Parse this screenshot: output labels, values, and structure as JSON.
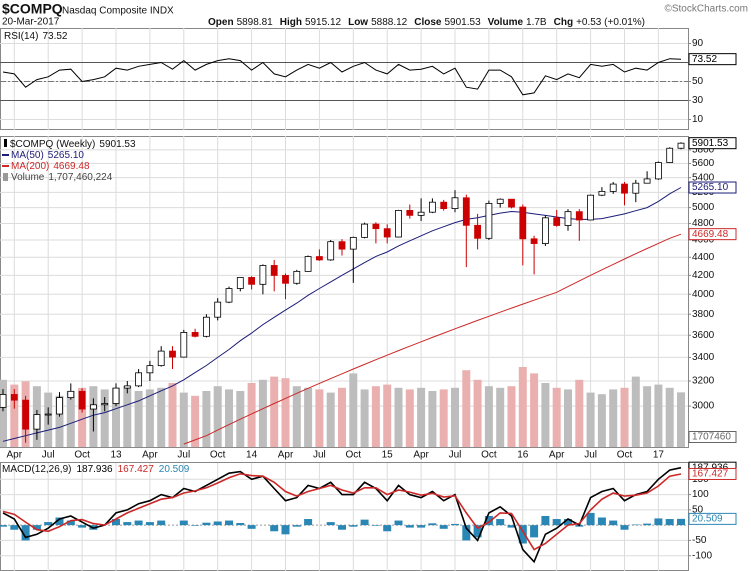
{
  "header": {
    "symbol": "$COMPQ",
    "name": "Nasdaq Composite INDX",
    "date": "20-Mar-2017",
    "quote": [
      {
        "label": "Open",
        "value": 5898.81
      },
      {
        "label": "High",
        "value": 5915.12
      },
      {
        "label": "Low",
        "value": 5888.12
      },
      {
        "label": "Close",
        "value": 5901.53
      },
      {
        "label": "Volume",
        "value": "1.7B"
      },
      {
        "label": "Chg",
        "value": "+0.53 (+0.01%)"
      }
    ],
    "copyright": "©StockCharts.com"
  },
  "chart_data": [
    {
      "type": "line",
      "title": "RSI(14)",
      "color": "#000000",
      "ylim": [
        0,
        100
      ],
      "yticks": [
        10,
        30,
        50,
        70,
        90
      ],
      "overbought": 70,
      "oversold": 30,
      "midline": 50,
      "grid": true,
      "values": [
        60,
        58,
        44,
        52,
        55,
        62,
        63,
        50,
        52,
        55,
        64,
        62,
        66,
        68,
        70,
        63,
        72,
        62,
        68,
        72,
        74,
        72,
        62,
        70,
        58,
        55,
        62,
        68,
        64,
        70,
        60,
        66,
        70,
        62,
        58,
        68,
        62,
        63,
        66,
        58,
        64,
        44,
        42,
        62,
        62,
        55,
        36,
        38,
        56,
        52,
        58,
        54,
        68,
        66,
        68,
        60,
        64,
        62,
        70,
        74,
        73.52
      ]
    },
    {
      "type": "candlestick",
      "title": "$COMPQ (Weekly)",
      "log_scale": true,
      "grid": true,
      "ylim": [
        2700,
        5950
      ],
      "yticks": [
        3000,
        3200,
        3400,
        3600,
        3800,
        4000,
        4200,
        4400,
        4600,
        4800,
        5000,
        5200,
        5400,
        5600,
        5800
      ],
      "up_color": "#000000",
      "down_color": "#cc0000",
      "categories": [
        null,
        "Apr",
        null,
        null,
        "Jul",
        null,
        null,
        "Oct",
        null,
        null,
        "13",
        null,
        null,
        "Apr",
        null,
        null,
        "Jul",
        null,
        null,
        "Oct",
        null,
        null,
        "14",
        null,
        null,
        "Apr",
        null,
        null,
        "Jul",
        null,
        null,
        "Oct",
        null,
        null,
        "15",
        null,
        null,
        "Apr",
        null,
        null,
        "Jul",
        null,
        null,
        "Oct",
        null,
        null,
        "16",
        null,
        null,
        "Apr",
        null,
        null,
        "Jul",
        null,
        null,
        "Oct",
        null,
        null,
        "17",
        null,
        null
      ],
      "open": [
        2990,
        3091,
        3046,
        2827,
        2935,
        2939,
        3066,
        3116,
        2977,
        3010,
        3020,
        3142,
        3160,
        3268,
        3329,
        3456,
        3403,
        3626,
        3590,
        3771,
        3920,
        4060,
        4177,
        4104,
        4308,
        4199,
        4115,
        4243,
        4408,
        4370,
        4580,
        4493,
        4631,
        4792,
        4736,
        4635,
        4964,
        4901,
        4941,
        5070,
        4987,
        5128,
        4777,
        4620,
        5054,
        5109,
        5007,
        4614,
        4558,
        4870,
        4775,
        4948,
        4843,
        5162,
        5213,
        5312,
        5189,
        5324,
        5383,
        5615,
        5825
      ],
      "high": [
        3134,
        3134,
        3080,
        2970,
        2990,
        3110,
        3180,
        3140,
        3060,
        3070,
        3180,
        3200,
        3300,
        3370,
        3500,
        3500,
        3650,
        3660,
        3800,
        3960,
        4080,
        4180,
        4190,
        4320,
        4370,
        4220,
        4260,
        4420,
        4490,
        4600,
        4610,
        4640,
        4810,
        4815,
        4790,
        4970,
        5040,
        5120,
        5120,
        5100,
        5230,
        5170,
        4920,
        5090,
        5120,
        5110,
        5040,
        4650,
        4900,
        4970,
        4980,
        4980,
        5170,
        5270,
        5340,
        5340,
        5370,
        5490,
        5630,
        5840,
        5915.12
      ],
      "low": [
        2960,
        2980,
        2730,
        2750,
        2860,
        2920,
        3050,
        2950,
        2810,
        2960,
        3000,
        3100,
        3150,
        3200,
        3320,
        3300,
        3400,
        3580,
        3580,
        3740,
        3910,
        4030,
        4050,
        4000,
        4030,
        3950,
        4100,
        4240,
        4360,
        4360,
        4420,
        4120,
        4620,
        4560,
        4560,
        4630,
        4860,
        4830,
        4930,
        4960,
        4940,
        4290,
        4490,
        4600,
        5000,
        4990,
        4310,
        4210,
        4530,
        4760,
        4710,
        4590,
        4840,
        5150,
        5180,
        5030,
        5070,
        5320,
        5370,
        5610,
        5810
      ],
      "close": [
        3091,
        3046,
        2827,
        2935,
        2939,
        3066,
        3116,
        2977,
        3010,
        3020,
        3142,
        3160,
        3268,
        3329,
        3456,
        3403,
        3626,
        3590,
        3771,
        3920,
        4060,
        4177,
        4104,
        4308,
        4199,
        4115,
        4243,
        4408,
        4370,
        4580,
        4493,
        4631,
        4792,
        4736,
        4635,
        4964,
        4901,
        4941,
        5070,
        4987,
        5128,
        4777,
        4620,
        5054,
        5109,
        5007,
        4614,
        4558,
        4870,
        4775,
        4948,
        4843,
        5162,
        5213,
        5312,
        5189,
        5324,
        5383,
        5615,
        5825,
        5901.53
      ],
      "overlays": [
        {
          "name": "MA(50)",
          "color": "#1c1c7a",
          "last_label": "5265.10",
          "values": [
            2740,
            2760,
            2780,
            2800,
            2820,
            2840,
            2870,
            2900,
            2930,
            2950,
            2980,
            3010,
            3040,
            3080,
            3120,
            3160,
            3210,
            3270,
            3330,
            3400,
            3470,
            3550,
            3620,
            3700,
            3770,
            3840,
            3910,
            3990,
            4060,
            4130,
            4200,
            4270,
            4340,
            4410,
            4460,
            4530,
            4590,
            4650,
            4710,
            4760,
            4810,
            4850,
            4870,
            4900,
            4930,
            4950,
            4940,
            4920,
            4900,
            4880,
            4860,
            4850,
            4850,
            4860,
            4890,
            4920,
            4960,
            5000,
            5080,
            5180,
            5265.1
          ]
        },
        {
          "name": "MA(200)",
          "color": "#cc2828",
          "values": [
            null,
            null,
            null,
            null,
            null,
            null,
            null,
            null,
            null,
            null,
            null,
            null,
            null,
            null,
            null,
            null,
            2720,
            2750,
            2780,
            2820,
            2860,
            2900,
            2940,
            2980,
            3020,
            3060,
            3100,
            3140,
            3180,
            3220,
            3260,
            3300,
            3340,
            3380,
            3420,
            3460,
            3500,
            3540,
            3580,
            3620,
            3660,
            3700,
            3740,
            3780,
            3820,
            3860,
            3900,
            3940,
            3980,
            4020,
            4080,
            4140,
            4200,
            4260,
            4320,
            4380,
            4440,
            4500,
            4560,
            4620,
            4669.48
          ]
        }
      ],
      "volume": {
        "name": "Volume",
        "last_label": "1,707,460,224",
        "badge": "1707460",
        "up_color": "#bdbdbd",
        "down_color": "#eab0b0",
        "values": [
          2100000000,
          1950000000,
          2050000000,
          1900000000,
          1700000000,
          1600000000,
          1750000000,
          1850000000,
          1900000000,
          1800000000,
          1850000000,
          1900000000,
          1750000000,
          1800000000,
          1850000000,
          2000000000,
          1700000000,
          1600000000,
          1750000000,
          1900000000,
          1800000000,
          1750000000,
          2000000000,
          2100000000,
          2200000000,
          2150000000,
          1900000000,
          1850000000,
          1800000000,
          1700000000,
          1850000000,
          2300000000,
          1800000000,
          1900000000,
          1950000000,
          1850000000,
          1800000000,
          1850000000,
          1750000000,
          1800000000,
          1850000000,
          2400000000,
          2100000000,
          1900000000,
          1850000000,
          1900000000,
          2500000000,
          2300000000,
          2000000000,
          1850000000,
          1800000000,
          2100000000,
          1700000000,
          1650000000,
          1800000000,
          1850000000,
          2200000000,
          1900000000,
          1950000000,
          1850000000,
          1707460224
        ]
      }
    },
    {
      "type": "macd",
      "title": "MACD(12,26,9)",
      "ylim": [
        -150,
        200
      ],
      "yticks": [
        -100,
        -50,
        50,
        100,
        150
      ],
      "grid": true,
      "series": [
        {
          "color": "#000000",
          "values": [
            40,
            20,
            -40,
            -30,
            -10,
            20,
            30,
            10,
            -10,
            0,
            40,
            50,
            70,
            80,
            100,
            90,
            120,
            110,
            130,
            150,
            170,
            175,
            150,
            160,
            120,
            80,
            90,
            130,
            120,
            140,
            100,
            100,
            140,
            120,
            80,
            130,
            100,
            90,
            110,
            80,
            100,
            -10,
            -50,
            40,
            60,
            30,
            -80,
            -120,
            -30,
            -10,
            20,
            0,
            90,
            110,
            120,
            80,
            100,
            110,
            150,
            180,
            187.936
          ]
        },
        {
          "color": "#cc2828",
          "values": [
            45,
            35,
            10,
            -15,
            -20,
            -5,
            15,
            18,
            5,
            0,
            20,
            40,
            55,
            70,
            85,
            90,
            105,
            112,
            122,
            138,
            155,
            168,
            162,
            160,
            140,
            110,
            95,
            110,
            120,
            130,
            115,
            105,
            122,
            122,
            100,
            115,
            108,
            98,
            104,
            92,
            96,
            40,
            -10,
            10,
            40,
            38,
            -20,
            -80,
            -60,
            -30,
            0,
            5,
            50,
            85,
            105,
            95,
            98,
            105,
            128,
            160,
            167.427
          ]
        },
        {
          "color": "#2a86b4",
          "style": "bar",
          "values": [
            -5,
            -15,
            -50,
            -15,
            10,
            25,
            15,
            -8,
            -15,
            0,
            20,
            10,
            15,
            10,
            15,
            0,
            15,
            -2,
            8,
            12,
            15,
            7,
            -12,
            0,
            -20,
            -30,
            -5,
            20,
            0,
            10,
            -15,
            -5,
            18,
            -2,
            -20,
            15,
            -8,
            -8,
            6,
            -12,
            4,
            -50,
            -40,
            30,
            20,
            -8,
            -60,
            -40,
            30,
            20,
            20,
            -5,
            40,
            25,
            15,
            -15,
            2,
            5,
            22,
            20,
            20.509
          ]
        }
      ]
    }
  ]
}
